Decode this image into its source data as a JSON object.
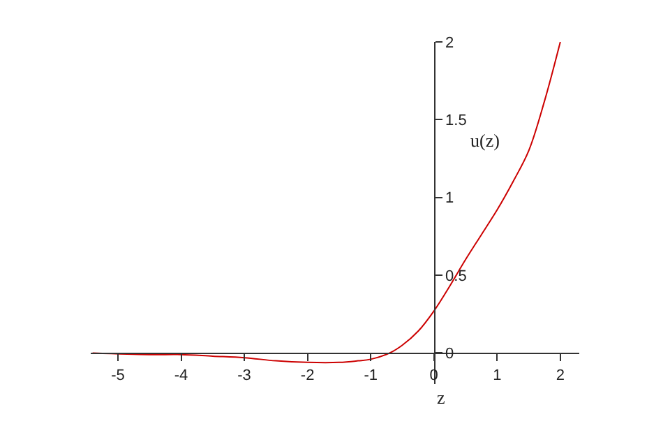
{
  "chart_data": {
    "type": "line",
    "xlabel": "z",
    "x": [
      -5.4,
      -4.5,
      -4,
      -3.5,
      -3,
      -2.5,
      -2,
      -1.5,
      -1.2,
      -1,
      -0.7,
      -0.5,
      -0.25,
      0,
      0.25,
      0.5,
      0.75,
      1,
      1.25,
      1.5,
      1.75,
      2
    ],
    "series": [
      {
        "color": "#cc0000",
        "values": [
          0,
          -0.01,
          -0.01,
          -0.02,
          -0.03,
          -0.05,
          -0.06,
          -0.06,
          -0.05,
          -0.04,
          0,
          0.05,
          0.14,
          0.27,
          0.43,
          0.6,
          0.76,
          0.92,
          1.1,
          1.3,
          1.62,
          2.0
        ]
      }
    ],
    "annotations": [
      "u(z)"
    ],
    "xlim": [
      -5.43,
      2.3
    ],
    "ylim": [
      -0.2,
      2
    ],
    "xticks": [
      -5,
      -4,
      -3,
      -2,
      -1,
      0,
      1,
      2
    ],
    "yticks": [
      0,
      0.5,
      1,
      1.5,
      2
    ],
    "marker": "none",
    "line_style": "solid"
  }
}
